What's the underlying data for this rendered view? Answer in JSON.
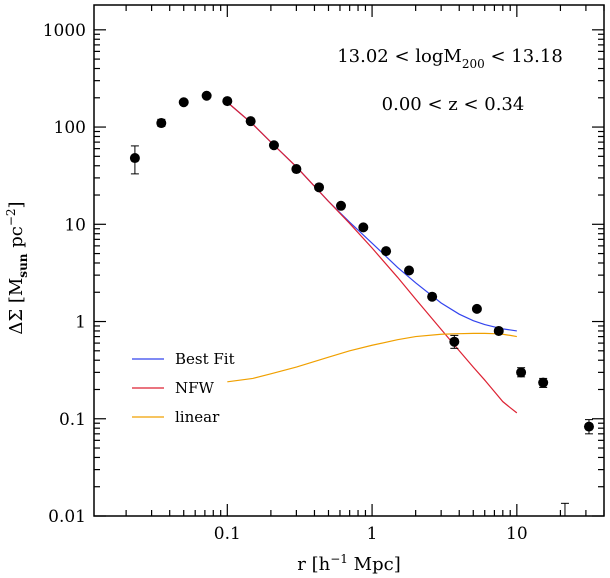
{
  "chart_data": {
    "type": "scatter",
    "x_scale": "log",
    "y_scale": "log",
    "xlim": [
      0.012,
      40
    ],
    "ylim": [
      0.01,
      1800
    ],
    "xticks": [
      {
        "value": 0.1,
        "label": "0.1"
      },
      {
        "value": 1,
        "label": "1"
      },
      {
        "value": 10,
        "label": "10"
      }
    ],
    "yticks": [
      {
        "value": 0.01,
        "label": "0.01"
      },
      {
        "value": 0.1,
        "label": "0.1"
      },
      {
        "value": 1,
        "label": "1"
      },
      {
        "value": 10,
        "label": "10"
      },
      {
        "value": 100,
        "label": "100"
      },
      {
        "value": 1000,
        "label": "1000"
      }
    ],
    "xlabel": {
      "pre": "r  [h",
      "sup": "−1",
      "post": " Mpc]"
    },
    "ylabel": {
      "pre": "ΔΣ  [M",
      "sub": "sun",
      "mid": "  pc",
      "sup": "−2",
      "post": "]"
    },
    "annotations": [
      {
        "pre": "13.02  <  logM",
        "sub": "200",
        "post": "  <  13.18"
      },
      {
        "text": "0.00  <  z  <  0.34"
      }
    ],
    "legend": {
      "position": "lower-left"
    },
    "points": [
      {
        "x": 0.023,
        "y": 48,
        "yerr_low": 33,
        "yerr_high": 64
      },
      {
        "x": 0.035,
        "y": 110,
        "yerr_low": 102,
        "yerr_high": 120
      },
      {
        "x": 0.05,
        "y": 180
      },
      {
        "x": 0.072,
        "y": 210
      },
      {
        "x": 0.1,
        "y": 185
      },
      {
        "x": 0.145,
        "y": 115
      },
      {
        "x": 0.21,
        "y": 65
      },
      {
        "x": 0.3,
        "y": 37
      },
      {
        "x": 0.43,
        "y": 24
      },
      {
        "x": 0.61,
        "y": 15.5
      },
      {
        "x": 0.87,
        "y": 9.3
      },
      {
        "x": 1.25,
        "y": 5.3
      },
      {
        "x": 1.8,
        "y": 3.35
      },
      {
        "x": 2.6,
        "y": 1.8
      },
      {
        "x": 3.7,
        "y": 0.62,
        "yerr_low": 0.53,
        "yerr_high": 0.72
      },
      {
        "x": 5.3,
        "y": 1.35
      },
      {
        "x": 7.5,
        "y": 0.8
      },
      {
        "x": 10.7,
        "y": 0.3,
        "yerr_low": 0.27,
        "yerr_high": 0.335
      },
      {
        "x": 15.2,
        "y": 0.235,
        "yerr_low": 0.21,
        "yerr_high": 0.26
      },
      {
        "x": 31.5,
        "y": 0.083,
        "yerr_low": 0.07,
        "yerr_high": 0.098
      }
    ],
    "bare_errorbar": {
      "x": 21.5,
      "y_low": 0.01,
      "y_high": 0.0135
    },
    "series": [
      {
        "name": "Best Fit",
        "color": "#3344ee",
        "type": "line",
        "x": [
          0.1,
          0.15,
          0.2,
          0.3,
          0.5,
          0.7,
          1,
          1.5,
          2,
          3,
          4,
          5,
          6,
          7,
          8,
          9,
          10
        ],
        "y": [
          180,
          107,
          70,
          39,
          17.2,
          10.5,
          6.4,
          3.6,
          2.5,
          1.55,
          1.19,
          1.02,
          0.93,
          0.88,
          0.84,
          0.82,
          0.8
        ]
      },
      {
        "name": "NFW",
        "color": "#dd2233",
        "type": "line",
        "x": [
          0.1,
          0.15,
          0.2,
          0.3,
          0.5,
          0.7,
          1,
          1.5,
          2,
          3,
          4,
          5,
          6,
          7,
          8,
          9,
          10
        ],
        "y": [
          180,
          107,
          70,
          39,
          17.2,
          10.2,
          5.7,
          2.85,
          1.7,
          0.83,
          0.5,
          0.34,
          0.25,
          0.19,
          0.15,
          0.13,
          0.115
        ]
      },
      {
        "name": "linear",
        "color": "#f0a000",
        "type": "line",
        "x": [
          0.1,
          0.15,
          0.2,
          0.3,
          0.5,
          0.7,
          1,
          1.5,
          2,
          3,
          4,
          5,
          6,
          7,
          8,
          9,
          10
        ],
        "y": [
          0.24,
          0.26,
          0.29,
          0.34,
          0.43,
          0.5,
          0.57,
          0.65,
          0.7,
          0.74,
          0.75,
          0.755,
          0.755,
          0.75,
          0.74,
          0.72,
          0.7
        ]
      }
    ]
  }
}
